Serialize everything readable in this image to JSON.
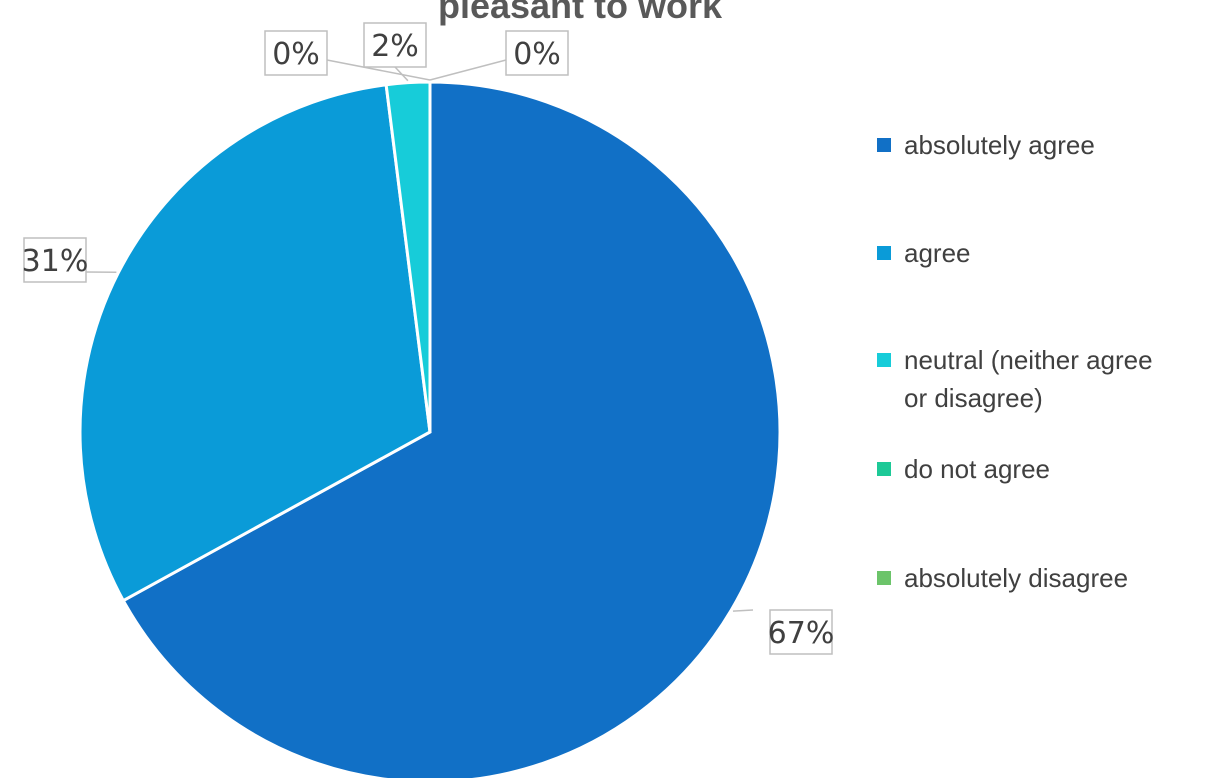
{
  "chart_data": {
    "type": "pie",
    "title": "pleasant to work",
    "categories": [
      "absolutely agree",
      "agree",
      "neutral (neither agree or disagree)",
      "do not agree",
      "absolutely disagree"
    ],
    "values": [
      67,
      31,
      2,
      0,
      0
    ],
    "data_labels": [
      "67%",
      "31%",
      "2%",
      "0%",
      "0%"
    ],
    "colors": [
      "#1170C6",
      "#0A9BD8",
      "#17CCD9",
      "#1DC997",
      "#6CC46A"
    ],
    "legend": {
      "placement": "right",
      "entries": [
        {
          "lines": [
            "absolutely agree"
          ]
        },
        {
          "lines": [
            "agree"
          ]
        },
        {
          "lines": [
            "neutral (neither agree",
            "or disagree)"
          ]
        },
        {
          "lines": [
            "do not agree"
          ]
        },
        {
          "lines": [
            "absolutely disagree"
          ]
        }
      ]
    }
  }
}
